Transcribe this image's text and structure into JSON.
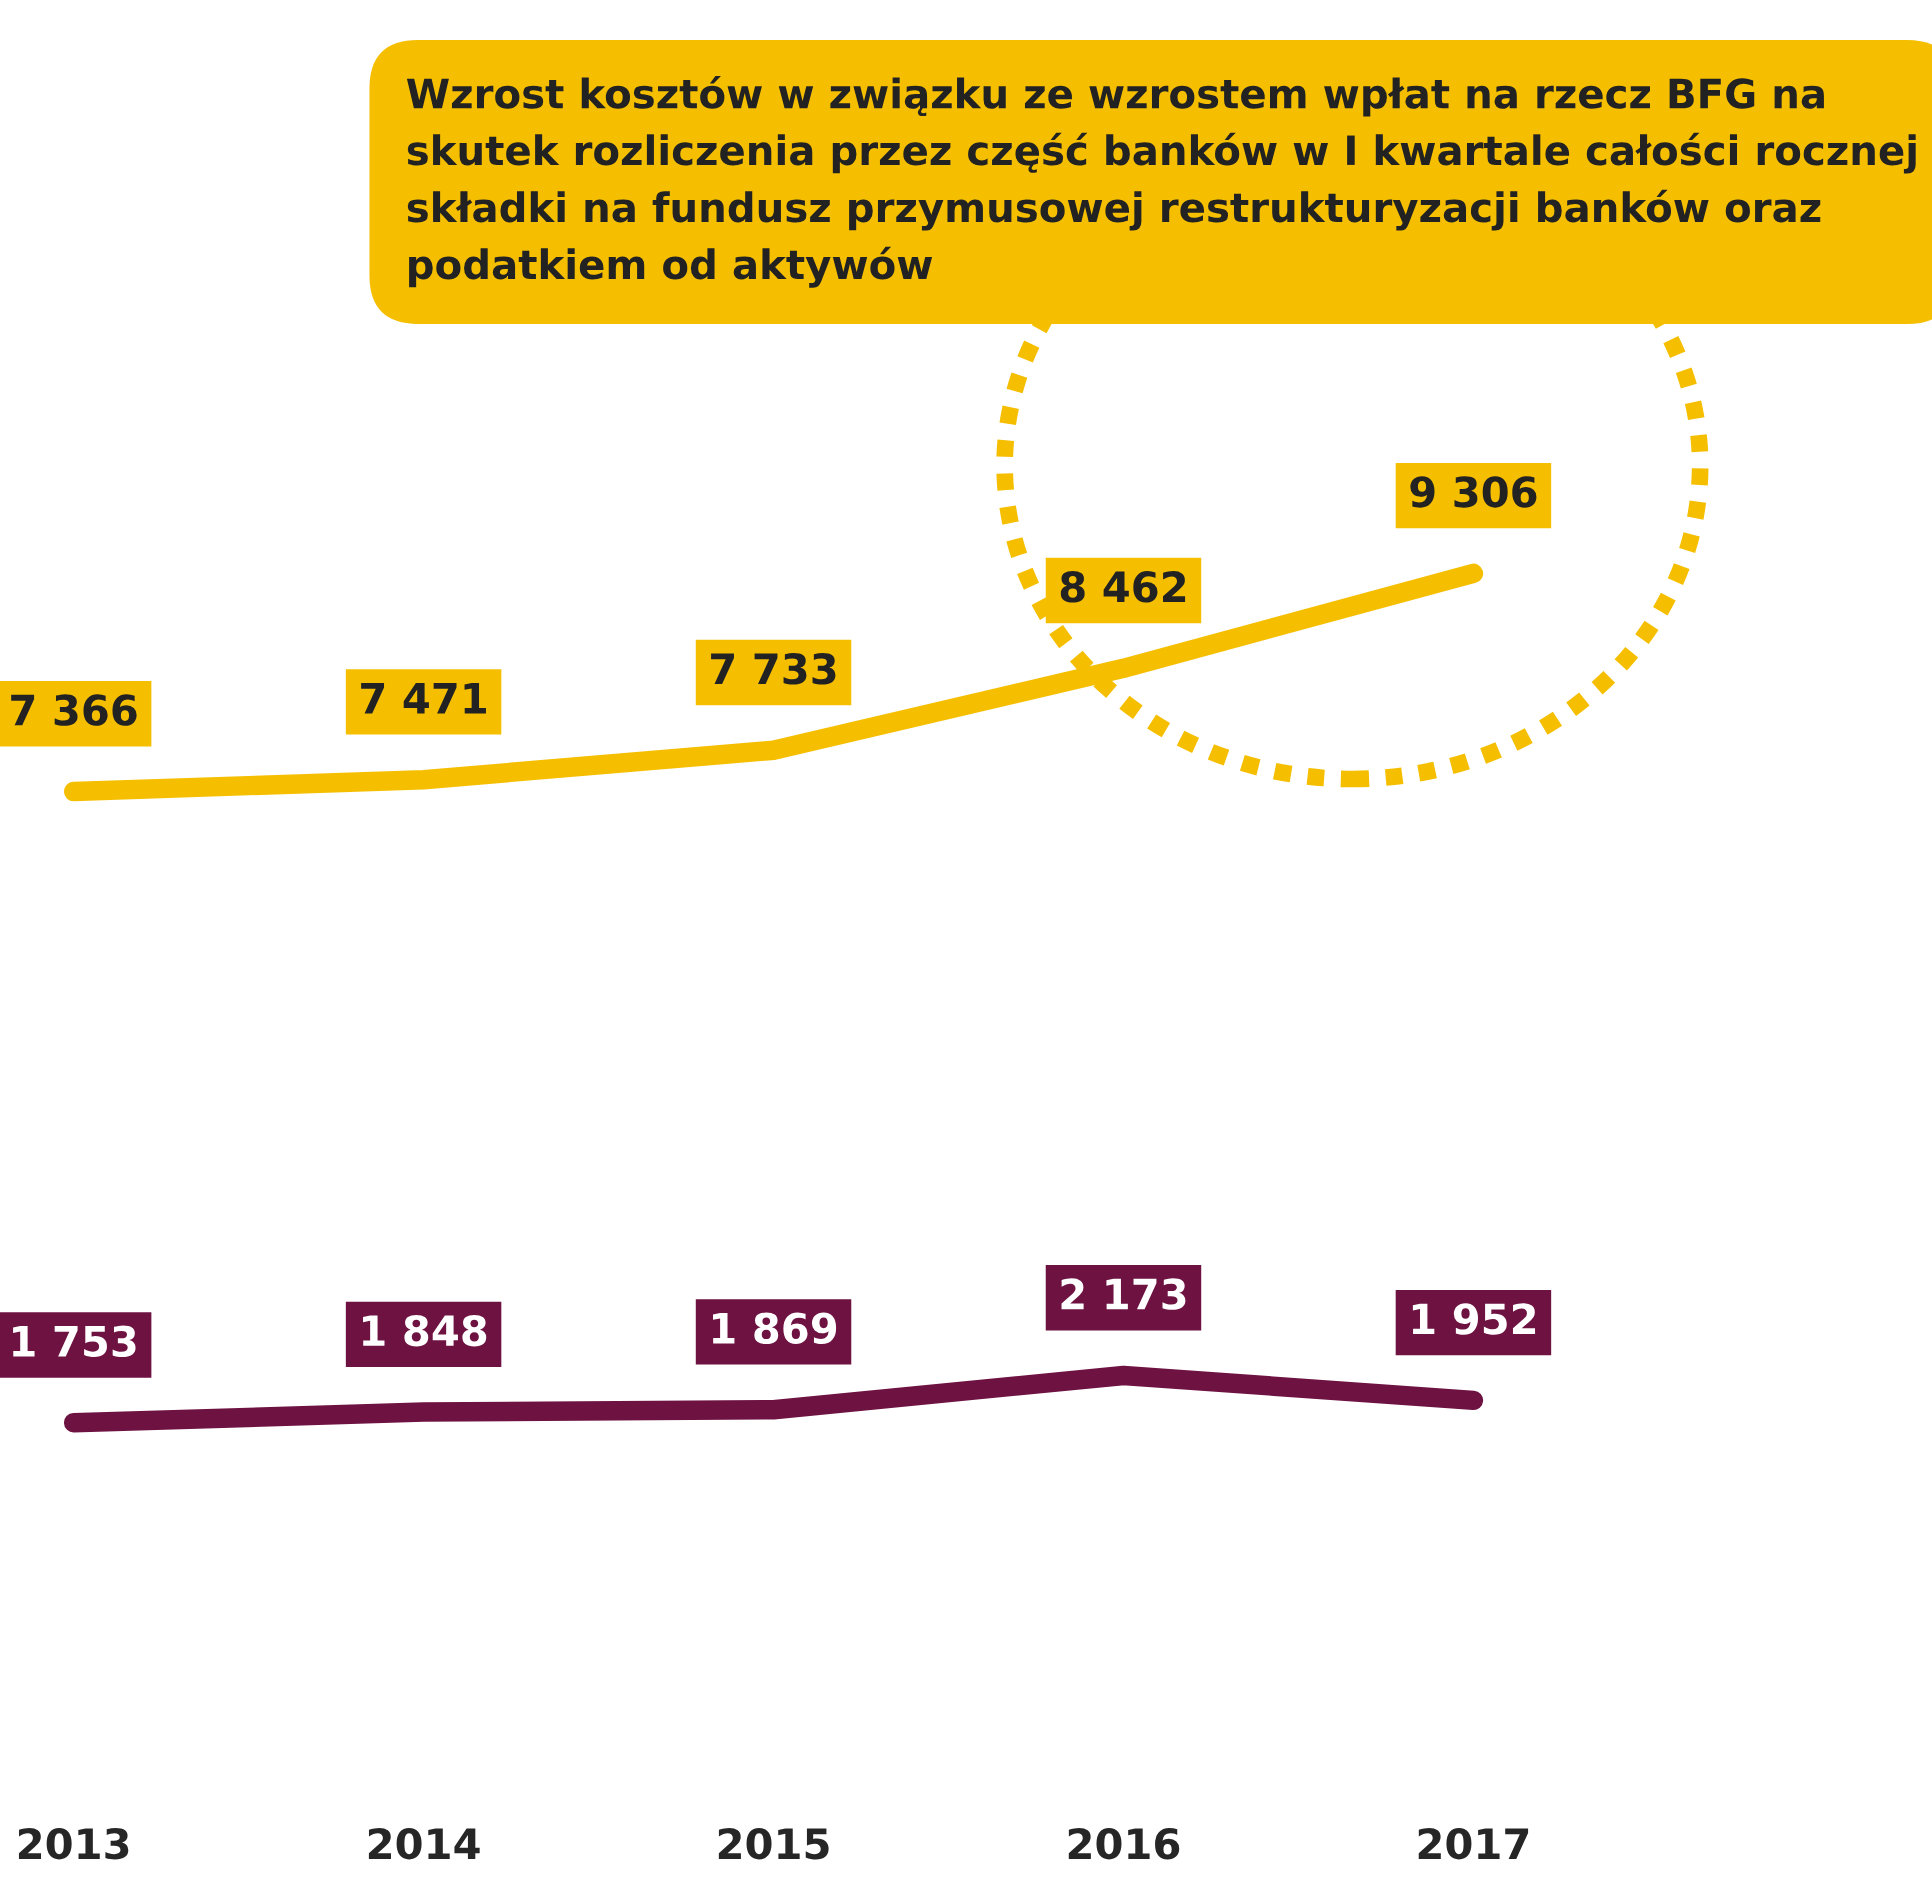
{
  "chart_data": {
    "type": "line",
    "categories": [
      "2013",
      "2014",
      "2015",
      "2016",
      "2017"
    ],
    "series": [
      {
        "color": "#f5bf00",
        "values": [
          7366,
          7471,
          7733,
          8462,
          9306
        ],
        "value_labels": [
          "7 366",
          "7 471",
          "7 733",
          "8 462",
          "9 306"
        ]
      },
      {
        "color": "#6e1241",
        "values": [
          1753,
          1848,
          1869,
          2173,
          1952
        ],
        "value_labels": [
          "1 753",
          "1 848",
          "1 869",
          "2 173",
          "1 952"
        ]
      }
    ],
    "annotations": [
      "Wzrost kosztów w związku ze wzrostem wpłat na rzecz BFG na skutek rozliczenia przez część banków w I kwartale całości rocznej składki na fundusz przymusowej restrukturyzacji banków oraz podatkiem od aktywów"
    ],
    "tick_labels": "x",
    "line_style": "solid",
    "marker": "none"
  }
}
